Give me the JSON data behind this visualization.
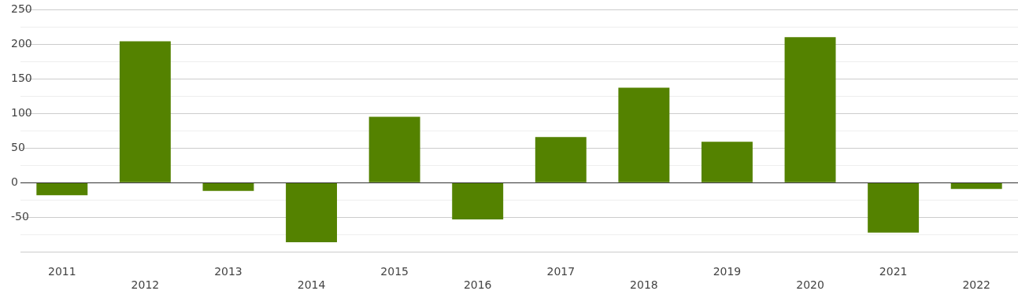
{
  "chart_data": {
    "type": "bar",
    "categories": [
      "2011",
      "2012",
      "2013",
      "2014",
      "2015",
      "2016",
      "2017",
      "2018",
      "2019",
      "2020",
      "2021",
      "2022"
    ],
    "values": [
      -18,
      204,
      -12,
      -86,
      95,
      -53,
      66,
      137,
      59,
      210,
      -72,
      -9
    ],
    "color": "#548200",
    "ylim": [
      -100,
      250
    ],
    "yticks": [
      {
        "value": -100,
        "label": null
      },
      {
        "value": -75,
        "label": null
      },
      -50,
      {
        "value": -25,
        "label": null
      },
      0,
      {
        "value": 25,
        "label": null
      },
      50,
      {
        "value": 75,
        "label": null
      },
      100,
      {
        "value": 125,
        "label": null
      },
      150,
      {
        "value": 175,
        "label": null
      },
      200,
      {
        "value": 225,
        "label": null
      },
      250
    ],
    "grid": "y",
    "ref_lines": [
      {
        "axis": "y",
        "value": 0,
        "color": "#333333"
      }
    ],
    "legend": false
  }
}
